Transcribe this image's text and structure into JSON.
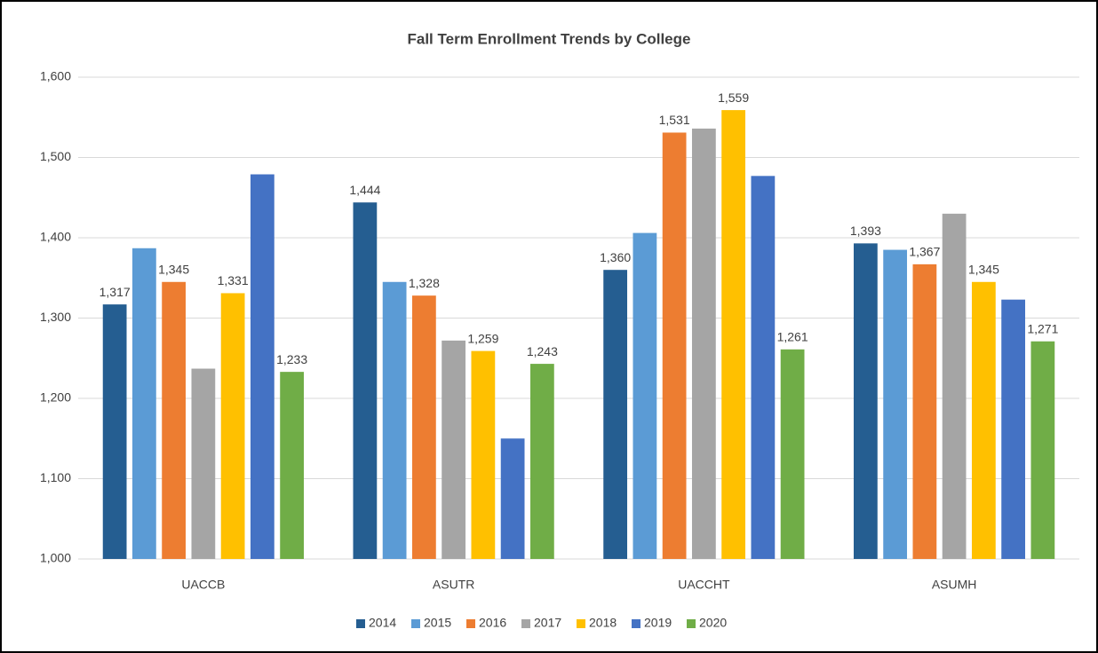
{
  "chart_data": {
    "type": "bar",
    "title": "Fall Term Enrollment Trends by College",
    "categories": [
      "UACCB",
      "ASUTR",
      "UACCHT",
      "ASUMH"
    ],
    "series": [
      {
        "name": "2014",
        "color": "#255e91",
        "values": [
          1317,
          1444,
          1360,
          1393
        ],
        "value_labels": [
          "1,317",
          "1,444",
          "1,360",
          "1,393"
        ]
      },
      {
        "name": "2015",
        "color": "#5b9bd5",
        "values": [
          1387,
          1345,
          1406,
          1385
        ]
      },
      {
        "name": "2016",
        "color": "#ed7d31",
        "values": [
          1345,
          1328,
          1531,
          1367
        ],
        "value_labels": [
          "1,345",
          "1,328",
          "1,531",
          "1,367"
        ]
      },
      {
        "name": "2017",
        "color": "#a5a5a5",
        "values": [
          1237,
          1272,
          1536,
          1430
        ]
      },
      {
        "name": "2018",
        "color": "#ffc000",
        "values": [
          1331,
          1259,
          1559,
          1345
        ],
        "value_labels": [
          "1,331",
          "1,259",
          "1,559",
          "1,345"
        ]
      },
      {
        "name": "2019",
        "color": "#4472c4",
        "values": [
          1479,
          1150,
          1477,
          1323
        ]
      },
      {
        "name": "2020",
        "color": "#70ad47",
        "values": [
          1233,
          1243,
          1261,
          1271
        ],
        "value_labels": [
          "1,233",
          "1,243",
          "1,261",
          "1,271"
        ]
      }
    ],
    "ylim": [
      1000,
      1600
    ],
    "yticks": [
      {
        "value": 1000,
        "label": "1,000"
      },
      {
        "value": 1100,
        "label": "1,100"
      },
      {
        "value": 1200,
        "label": "1,200"
      },
      {
        "value": 1300,
        "label": "1,300"
      },
      {
        "value": 1400,
        "label": "1,400"
      },
      {
        "value": 1500,
        "label": "1,500"
      },
      {
        "value": 1600,
        "label": "1,600"
      }
    ],
    "grid": true,
    "legend": "bottom"
  }
}
